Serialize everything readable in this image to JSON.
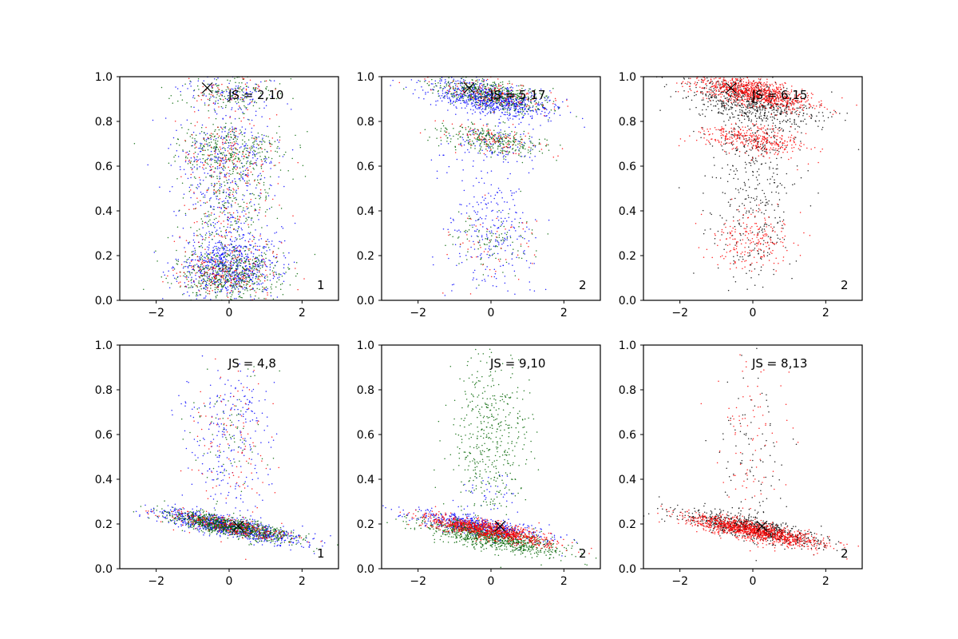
{
  "figure": {
    "layout": "2x3 grid of scatter plots",
    "x_ticks": [
      "−2",
      "0",
      "2"
    ],
    "y_ticks": [
      "0.0",
      "0.2",
      "0.4",
      "0.6",
      "0.8",
      "1.0"
    ],
    "colors": {
      "blue": "#0000ff",
      "green": "#006400",
      "red": "#ff0000",
      "black": "#000000",
      "axes": "#000000"
    }
  },
  "chart_data": [
    {
      "type": "scatter",
      "title": "",
      "xlabel": "",
      "ylabel": "",
      "xlim": [
        -3,
        3
      ],
      "ylim": [
        0,
        1
      ],
      "grid": false,
      "annotation": "JS = 2,10",
      "corner_label": "1",
      "marker": {
        "x": -0.6,
        "y": 0.95,
        "symbol": "x"
      },
      "series": [
        {
          "color": "blue",
          "clusters": [
            {
              "cx": 0.0,
              "cy": 0.15,
              "sx": 0.7,
              "sy": 0.07,
              "n": 700,
              "tilt": 0.0
            },
            {
              "cx": 0.0,
              "cy": 0.65,
              "sx": 0.7,
              "sy": 0.1,
              "n": 250,
              "tilt": 0.0
            },
            {
              "cx": 0.0,
              "cy": 0.4,
              "sx": 0.7,
              "sy": 0.12,
              "n": 180,
              "tilt": 0.0
            },
            {
              "cx": 0.0,
              "cy": 0.93,
              "sx": 0.7,
              "sy": 0.05,
              "n": 120,
              "tilt": 0.0
            }
          ]
        },
        {
          "color": "green",
          "clusters": [
            {
              "cx": 0.0,
              "cy": 0.12,
              "sx": 0.75,
              "sy": 0.06,
              "n": 550,
              "tilt": 0.0
            },
            {
              "cx": 0.0,
              "cy": 0.67,
              "sx": 0.7,
              "sy": 0.06,
              "n": 350,
              "tilt": 0.0
            },
            {
              "cx": 0.0,
              "cy": 0.42,
              "sx": 0.6,
              "sy": 0.1,
              "n": 200,
              "tilt": 0.0
            },
            {
              "cx": 0.0,
              "cy": 0.93,
              "sx": 0.7,
              "sy": 0.04,
              "n": 150,
              "tilt": 0.0
            }
          ]
        },
        {
          "color": "red",
          "clusters": [
            {
              "cx": 0.0,
              "cy": 0.12,
              "sx": 0.7,
              "sy": 0.06,
              "n": 200,
              "tilt": 0.0
            },
            {
              "cx": 0.0,
              "cy": 0.65,
              "sx": 0.7,
              "sy": 0.08,
              "n": 140,
              "tilt": 0.0
            },
            {
              "cx": 0.0,
              "cy": 0.4,
              "sx": 0.6,
              "sy": 0.12,
              "n": 100,
              "tilt": 0.0
            },
            {
              "cx": 0.0,
              "cy": 0.93,
              "sx": 0.7,
              "sy": 0.04,
              "n": 60,
              "tilt": 0.0
            }
          ]
        }
      ]
    },
    {
      "type": "scatter",
      "title": "",
      "xlabel": "",
      "ylabel": "",
      "xlim": [
        -3,
        3
      ],
      "ylim": [
        0,
        1
      ],
      "grid": false,
      "annotation": "JS = 5,17",
      "corner_label": "2",
      "marker": {
        "x": -0.6,
        "y": 0.95,
        "symbol": "x"
      },
      "series": [
        {
          "color": "blue",
          "clusters": [
            {
              "cx": 0.0,
              "cy": 0.9,
              "sx": 0.8,
              "sy": 0.035,
              "n": 800,
              "tilt": -0.03
            },
            {
              "cx": 0.0,
              "cy": 0.3,
              "sx": 0.6,
              "sy": 0.15,
              "n": 250,
              "tilt": 0.0
            },
            {
              "cx": 0.0,
              "cy": 0.7,
              "sx": 0.6,
              "sy": 0.05,
              "n": 120,
              "tilt": 0.0
            }
          ]
        },
        {
          "color": "green",
          "clusters": [
            {
              "cx": 0.0,
              "cy": 0.92,
              "sx": 0.8,
              "sy": 0.03,
              "n": 500,
              "tilt": -0.03
            },
            {
              "cx": 0.0,
              "cy": 0.72,
              "sx": 0.7,
              "sy": 0.03,
              "n": 300,
              "tilt": -0.02
            },
            {
              "cx": 0.0,
              "cy": 0.27,
              "sx": 0.6,
              "sy": 0.07,
              "n": 100,
              "tilt": 0.0
            }
          ]
        },
        {
          "color": "red",
          "clusters": [
            {
              "cx": 0.0,
              "cy": 0.93,
              "sx": 0.8,
              "sy": 0.03,
              "n": 150,
              "tilt": -0.03
            },
            {
              "cx": 0.0,
              "cy": 0.72,
              "sx": 0.7,
              "sy": 0.03,
              "n": 100,
              "tilt": -0.02
            },
            {
              "cx": 0.0,
              "cy": 0.27,
              "sx": 0.6,
              "sy": 0.07,
              "n": 50,
              "tilt": 0.0
            }
          ]
        }
      ]
    },
    {
      "type": "scatter",
      "title": "",
      "xlabel": "",
      "ylabel": "",
      "xlim": [
        -3,
        3
      ],
      "ylim": [
        0,
        1
      ],
      "grid": false,
      "annotation": "JS = 6,15",
      "corner_label": "2",
      "marker": {
        "x": -0.6,
        "y": 0.95,
        "symbol": "x"
      },
      "series": [
        {
          "color": "black",
          "clusters": [
            {
              "cx": 0.0,
              "cy": 0.88,
              "sx": 0.9,
              "sy": 0.05,
              "n": 700,
              "tilt": -0.03
            },
            {
              "cx": 0.0,
              "cy": 0.4,
              "sx": 0.6,
              "sy": 0.18,
              "n": 300,
              "tilt": 0.0
            },
            {
              "cx": 0.0,
              "cy": 0.72,
              "sx": 0.6,
              "sy": 0.04,
              "n": 120,
              "tilt": 0.0
            }
          ]
        },
        {
          "color": "red",
          "clusters": [
            {
              "cx": 0.0,
              "cy": 0.93,
              "sx": 0.8,
              "sy": 0.03,
              "n": 900,
              "tilt": -0.03
            },
            {
              "cx": 0.0,
              "cy": 0.72,
              "sx": 0.7,
              "sy": 0.03,
              "n": 350,
              "tilt": -0.02
            },
            {
              "cx": 0.0,
              "cy": 0.27,
              "sx": 0.6,
              "sy": 0.07,
              "n": 200,
              "tilt": 0.0
            }
          ]
        }
      ]
    },
    {
      "type": "scatter",
      "title": "",
      "xlabel": "",
      "ylabel": "",
      "xlim": [
        -3,
        3
      ],
      "ylim": [
        0,
        1
      ],
      "grid": false,
      "annotation": "JS = 4,8",
      "corner_label": "1",
      "marker": {
        "x": 0.25,
        "y": 0.19,
        "symbol": "x"
      },
      "series": [
        {
          "color": "blue",
          "clusters": [
            {
              "cx": 0.0,
              "cy": 0.19,
              "sx": 0.95,
              "sy": 0.022,
              "n": 900,
              "tilt": -0.03
            },
            {
              "cx": 0.0,
              "cy": 0.7,
              "sx": 0.6,
              "sy": 0.1,
              "n": 150,
              "tilt": 0.0
            },
            {
              "cx": 0.0,
              "cy": 0.42,
              "sx": 0.5,
              "sy": 0.1,
              "n": 100,
              "tilt": 0.0
            }
          ]
        },
        {
          "color": "green",
          "clusters": [
            {
              "cx": 0.0,
              "cy": 0.19,
              "sx": 0.85,
              "sy": 0.02,
              "n": 900,
              "tilt": -0.03
            },
            {
              "cx": 0.0,
              "cy": 0.6,
              "sx": 0.6,
              "sy": 0.15,
              "n": 80,
              "tilt": 0.0
            }
          ]
        },
        {
          "color": "red",
          "clusters": [
            {
              "cx": 0.0,
              "cy": 0.19,
              "sx": 0.85,
              "sy": 0.02,
              "n": 250,
              "tilt": -0.03
            },
            {
              "cx": 0.0,
              "cy": 0.55,
              "sx": 0.6,
              "sy": 0.18,
              "n": 100,
              "tilt": 0.0
            }
          ]
        }
      ]
    },
    {
      "type": "scatter",
      "title": "",
      "xlabel": "",
      "ylabel": "",
      "xlim": [
        -3,
        3
      ],
      "ylim": [
        0,
        1
      ],
      "grid": false,
      "annotation": "JS = 9,10",
      "corner_label": "2",
      "marker": {
        "x": 0.25,
        "y": 0.19,
        "symbol": "x"
      },
      "series": [
        {
          "color": "blue",
          "clusters": [
            {
              "cx": -0.3,
              "cy": 0.19,
              "sx": 0.9,
              "sy": 0.022,
              "n": 600,
              "tilt": -0.03
            },
            {
              "cx": 0.0,
              "cy": 0.35,
              "sx": 0.5,
              "sy": 0.05,
              "n": 40,
              "tilt": 0.0
            }
          ]
        },
        {
          "color": "green",
          "clusters": [
            {
              "cx": 0.0,
              "cy": 0.14,
              "sx": 0.95,
              "sy": 0.025,
              "n": 900,
              "tilt": -0.03
            },
            {
              "cx": 0.0,
              "cy": 0.6,
              "sx": 0.5,
              "sy": 0.18,
              "n": 450,
              "tilt": 0.0
            }
          ]
        },
        {
          "color": "red",
          "clusters": [
            {
              "cx": 0.0,
              "cy": 0.17,
              "sx": 0.9,
              "sy": 0.02,
              "n": 900,
              "tilt": -0.03
            }
          ]
        }
      ]
    },
    {
      "type": "scatter",
      "title": "",
      "xlabel": "",
      "ylabel": "",
      "xlim": [
        -3,
        3
      ],
      "ylim": [
        0,
        1
      ],
      "grid": false,
      "annotation": "JS = 8,13",
      "corner_label": "2",
      "marker": {
        "x": 0.25,
        "y": 0.19,
        "symbol": "x"
      },
      "series": [
        {
          "color": "black",
          "clusters": [
            {
              "cx": 0.0,
              "cy": 0.18,
              "sx": 1.0,
              "sy": 0.025,
              "n": 700,
              "tilt": -0.03
            },
            {
              "cx": 0.0,
              "cy": 0.5,
              "sx": 0.5,
              "sy": 0.2,
              "n": 100,
              "tilt": 0.0
            }
          ]
        },
        {
          "color": "red",
          "clusters": [
            {
              "cx": 0.0,
              "cy": 0.17,
              "sx": 0.9,
              "sy": 0.02,
              "n": 1100,
              "tilt": -0.03
            },
            {
              "cx": 0.0,
              "cy": 0.55,
              "sx": 0.5,
              "sy": 0.2,
              "n": 90,
              "tilt": 0.0
            }
          ]
        }
      ]
    }
  ]
}
